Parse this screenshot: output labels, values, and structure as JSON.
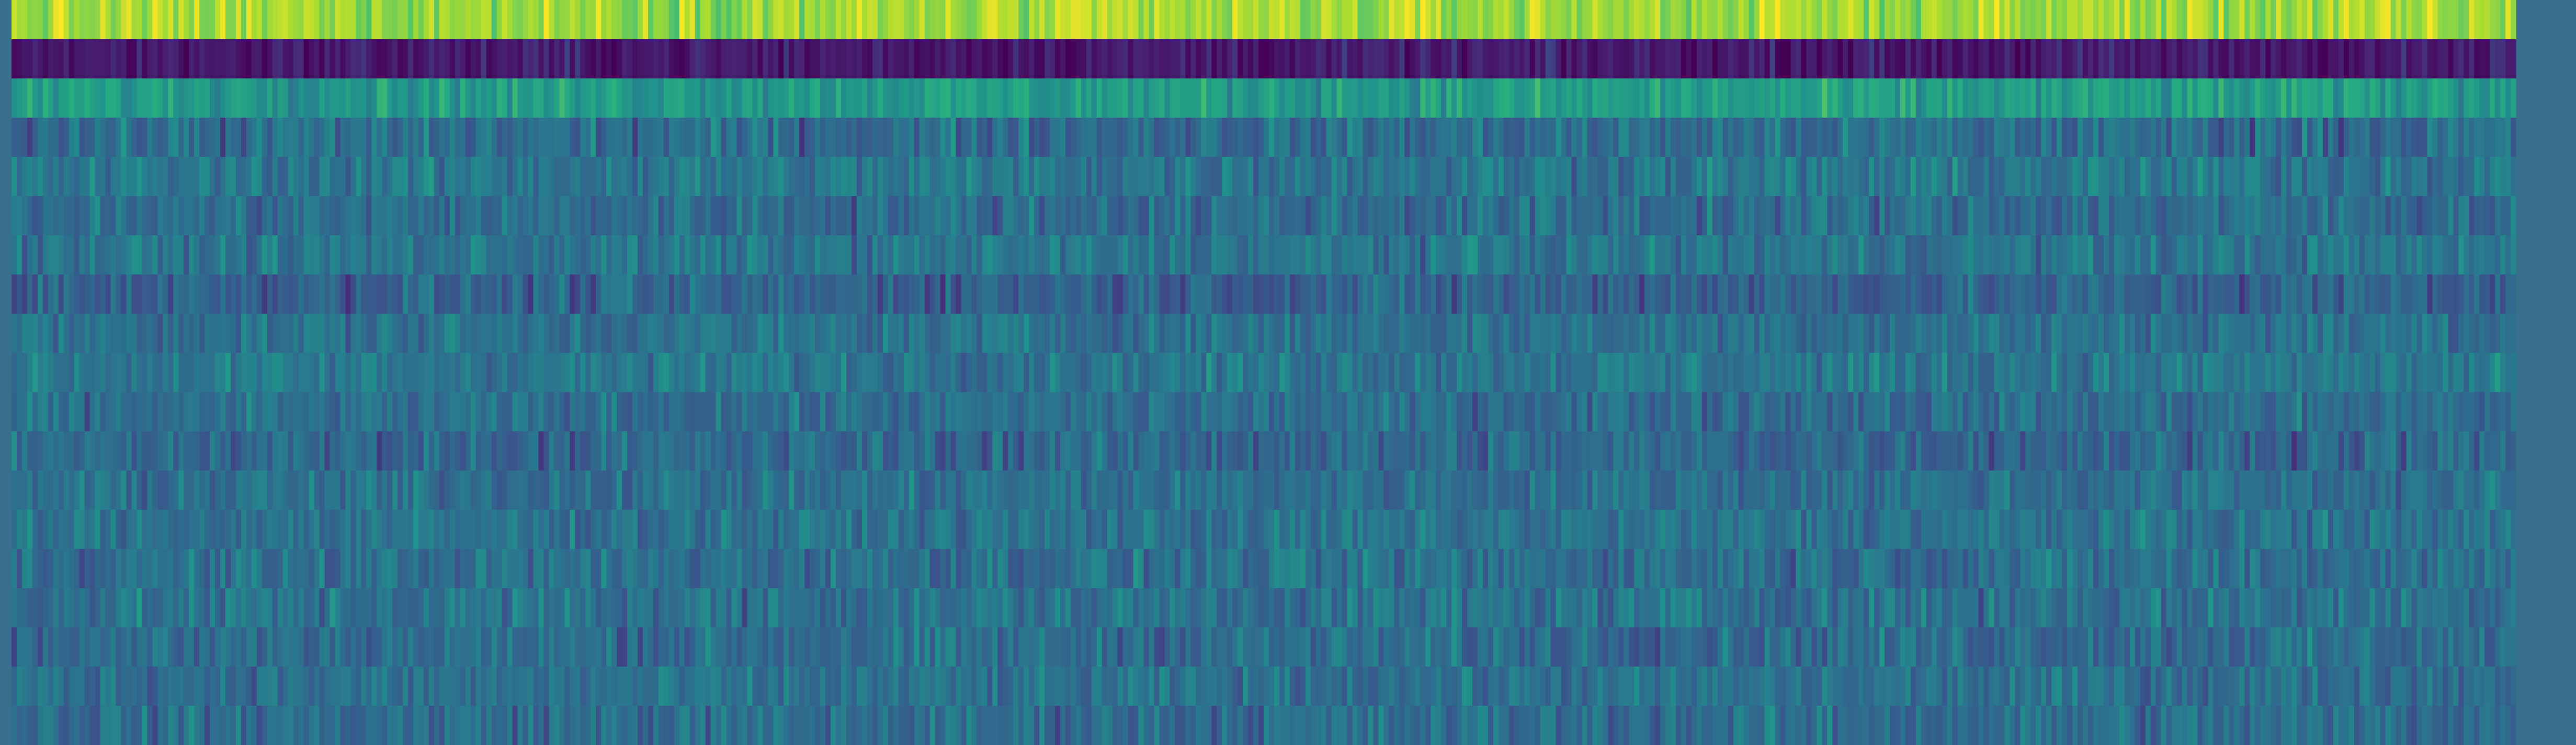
{
  "chart_data": {
    "type": "heatmap",
    "title": "",
    "xlabel": "",
    "ylabel": "",
    "colormap": "viridis",
    "n_rows": 19,
    "n_cols": 480,
    "value_range": [
      0,
      1
    ],
    "row_profile": [
      {
        "row": 0,
        "mean": 0.86,
        "spread": 0.08
      },
      {
        "row": 1,
        "mean": 0.09,
        "spread": 0.06
      },
      {
        "row": 2,
        "mean": 0.55,
        "spread": 0.08
      },
      {
        "row": 3,
        "mean": 0.36,
        "spread": 0.09
      },
      {
        "row": 4,
        "mean": 0.4,
        "spread": 0.08
      },
      {
        "row": 5,
        "mean": 0.36,
        "spread": 0.08
      },
      {
        "row": 6,
        "mean": 0.39,
        "spread": 0.07
      },
      {
        "row": 7,
        "mean": 0.32,
        "spread": 0.08
      },
      {
        "row": 8,
        "mean": 0.38,
        "spread": 0.07
      },
      {
        "row": 9,
        "mean": 0.4,
        "spread": 0.07
      },
      {
        "row": 10,
        "mean": 0.36,
        "spread": 0.07
      },
      {
        "row": 11,
        "mean": 0.34,
        "spread": 0.08
      },
      {
        "row": 12,
        "mean": 0.37,
        "spread": 0.07
      },
      {
        "row": 13,
        "mean": 0.38,
        "spread": 0.07
      },
      {
        "row": 14,
        "mean": 0.37,
        "spread": 0.08
      },
      {
        "row": 15,
        "mean": 0.38,
        "spread": 0.08
      },
      {
        "row": 16,
        "mean": 0.36,
        "spread": 0.08
      },
      {
        "row": 17,
        "mean": 0.37,
        "spread": 0.07
      },
      {
        "row": 18,
        "mean": 0.36,
        "spread": 0.08
      }
    ],
    "grid": false,
    "legend": "none",
    "colors": {
      "low": "#440154",
      "mid": "#21918c",
      "high": "#fde725",
      "background": "#386f8d"
    }
  }
}
